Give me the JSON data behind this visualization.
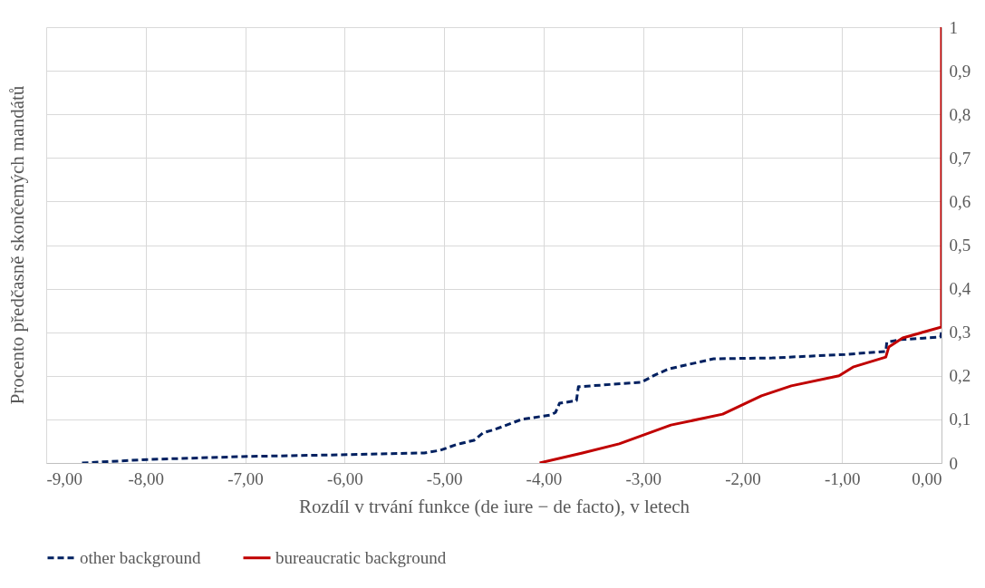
{
  "chart_data": {
    "type": "line",
    "xlabel": "Rozdíl v trvání funkce (de iure − de facto), v letech",
    "ylabel": "Procento předčasně skončemých mandátů",
    "xlim": [
      -9,
      0
    ],
    "ylim": [
      0,
      1
    ],
    "xticks": [
      {
        "value": -9,
        "label": "-9,00"
      },
      {
        "value": -8,
        "label": "-8,00"
      },
      {
        "value": -7,
        "label": "-7,00"
      },
      {
        "value": -6,
        "label": "-6,00"
      },
      {
        "value": -5,
        "label": "-5,00"
      },
      {
        "value": -4,
        "label": "-4,00"
      },
      {
        "value": -3,
        "label": "-3,00"
      },
      {
        "value": -2,
        "label": "-2,00"
      },
      {
        "value": -1,
        "label": "-1,00"
      },
      {
        "value": 0,
        "label": "0,00"
      }
    ],
    "yticks": [
      0,
      {
        "value": 0.1,
        "label": "0,1"
      },
      {
        "value": 0.2,
        "label": "0,2"
      },
      {
        "value": 0.3,
        "label": "0,3"
      },
      {
        "value": 0.4,
        "label": "0,4"
      },
      {
        "value": 0.5,
        "label": "0,5"
      },
      {
        "value": 0.6,
        "label": "0,6"
      },
      {
        "value": 0.7,
        "label": "0,7"
      },
      {
        "value": 0.8,
        "label": "0,8"
      },
      {
        "value": 0.9,
        "label": "0,9"
      },
      1
    ],
    "grid": true,
    "legend": "bottom",
    "series": [
      {
        "name": "other background",
        "color": "#002060",
        "line_style": "dashed",
        "x": [
          -8.64,
          -7.98,
          -6.98,
          -5.98,
          -5.2,
          -5.04,
          -4.88,
          -4.7,
          -4.61,
          -4.49,
          -4.22,
          -3.93,
          -3.88,
          -3.84,
          -3.67,
          -3.65,
          -3.02,
          -2.88,
          -2.74,
          -2.29,
          -1.7,
          -0.97,
          -0.56,
          -0.55,
          -0.42,
          -0.01,
          0
        ],
        "values": [
          0,
          0.008,
          0.015,
          0.019,
          0.023,
          0.029,
          0.042,
          0.052,
          0.069,
          0.077,
          0.1,
          0.11,
          0.116,
          0.137,
          0.143,
          0.175,
          0.185,
          0.202,
          0.216,
          0.239,
          0.241,
          0.249,
          0.256,
          0.277,
          0.283,
          0.289,
          0.3
        ]
      },
      {
        "name": "bureaucratic background",
        "color": "#c00000",
        "line_style": "solid",
        "x": [
          -4.04,
          -3.61,
          -3.24,
          -2.72,
          -2.2,
          -1.81,
          -1.51,
          -1.03,
          -0.89,
          -0.56,
          -0.53,
          -0.39,
          0,
          0
        ],
        "values": [
          0,
          0.023,
          0.044,
          0.087,
          0.112,
          0.154,
          0.177,
          0.2,
          0.22,
          0.243,
          0.266,
          0.287,
          0.312,
          1
        ]
      }
    ]
  }
}
